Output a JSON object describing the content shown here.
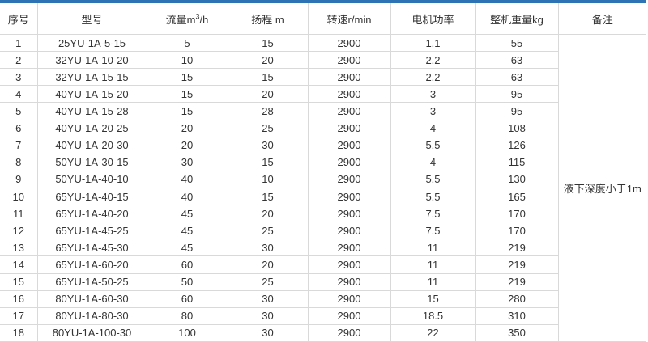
{
  "accent_color": "#2e74b5",
  "table": {
    "headers": {
      "no": "序号",
      "model": "型号",
      "flow_pre": "流量m",
      "flow_sup": "3",
      "flow_post": "/h",
      "head": "扬程 m",
      "speed": "转速r/min",
      "power": "电机功率",
      "weight": "整机重量kg",
      "remark": "备注"
    },
    "remark": "液下深度小于1m",
    "rows": [
      {
        "no": "1",
        "model": "25YU-1A-5-15",
        "flow": "5",
        "head": "15",
        "speed": "2900",
        "power": "1.1",
        "weight": "55"
      },
      {
        "no": "2",
        "model": "32YU-1A-10-20",
        "flow": "10",
        "head": "20",
        "speed": "2900",
        "power": "2.2",
        "weight": "63"
      },
      {
        "no": "3",
        "model": "32YU-1A-15-15",
        "flow": "15",
        "head": "15",
        "speed": "2900",
        "power": "2.2",
        "weight": "63"
      },
      {
        "no": "4",
        "model": "40YU-1A-15-20",
        "flow": "15",
        "head": "20",
        "speed": "2900",
        "power": "3",
        "weight": "95"
      },
      {
        "no": "5",
        "model": "40YU-1A-15-28",
        "flow": "15",
        "head": "28",
        "speed": "2900",
        "power": "3",
        "weight": "95"
      },
      {
        "no": "6",
        "model": "40YU-1A-20-25",
        "flow": "20",
        "head": "25",
        "speed": "2900",
        "power": "4",
        "weight": "108"
      },
      {
        "no": "7",
        "model": "40YU-1A-20-30",
        "flow": "20",
        "head": "30",
        "speed": "2900",
        "power": "5.5",
        "weight": "126"
      },
      {
        "no": "8",
        "model": "50YU-1A-30-15",
        "flow": "30",
        "head": "15",
        "speed": "2900",
        "power": "4",
        "weight": "115"
      },
      {
        "no": "9",
        "model": "50YU-1A-40-10",
        "flow": "40",
        "head": "10",
        "speed": "2900",
        "power": "5.5",
        "weight": "130"
      },
      {
        "no": "10",
        "model": "65YU-1A-40-15",
        "flow": "40",
        "head": "15",
        "speed": "2900",
        "power": "5.5",
        "weight": "165"
      },
      {
        "no": "11",
        "model": "65YU-1A-40-20",
        "flow": "45",
        "head": "20",
        "speed": "2900",
        "power": "7.5",
        "weight": "170"
      },
      {
        "no": "12",
        "model": "65YU-1A-45-25",
        "flow": "45",
        "head": "25",
        "speed": "2900",
        "power": "7.5",
        "weight": "170"
      },
      {
        "no": "13",
        "model": "65YU-1A-45-30",
        "flow": "45",
        "head": "30",
        "speed": "2900",
        "power": "11",
        "weight": "219"
      },
      {
        "no": "14",
        "model": "65YU-1A-60-20",
        "flow": "60",
        "head": "20",
        "speed": "2900",
        "power": "11",
        "weight": "219"
      },
      {
        "no": "15",
        "model": "65YU-1A-50-25",
        "flow": "50",
        "head": "25",
        "speed": "2900",
        "power": "11",
        "weight": "219"
      },
      {
        "no": "16",
        "model": "80YU-1A-60-30",
        "flow": "60",
        "head": "30",
        "speed": "2900",
        "power": "15",
        "weight": "280"
      },
      {
        "no": "17",
        "model": "80YU-1A-80-30",
        "flow": "80",
        "head": "30",
        "speed": "2900",
        "power": "18.5",
        "weight": "310"
      },
      {
        "no": "18",
        "model": "80YU-1A-100-30",
        "flow": "100",
        "head": "30",
        "speed": "2900",
        "power": "22",
        "weight": "350"
      }
    ]
  }
}
